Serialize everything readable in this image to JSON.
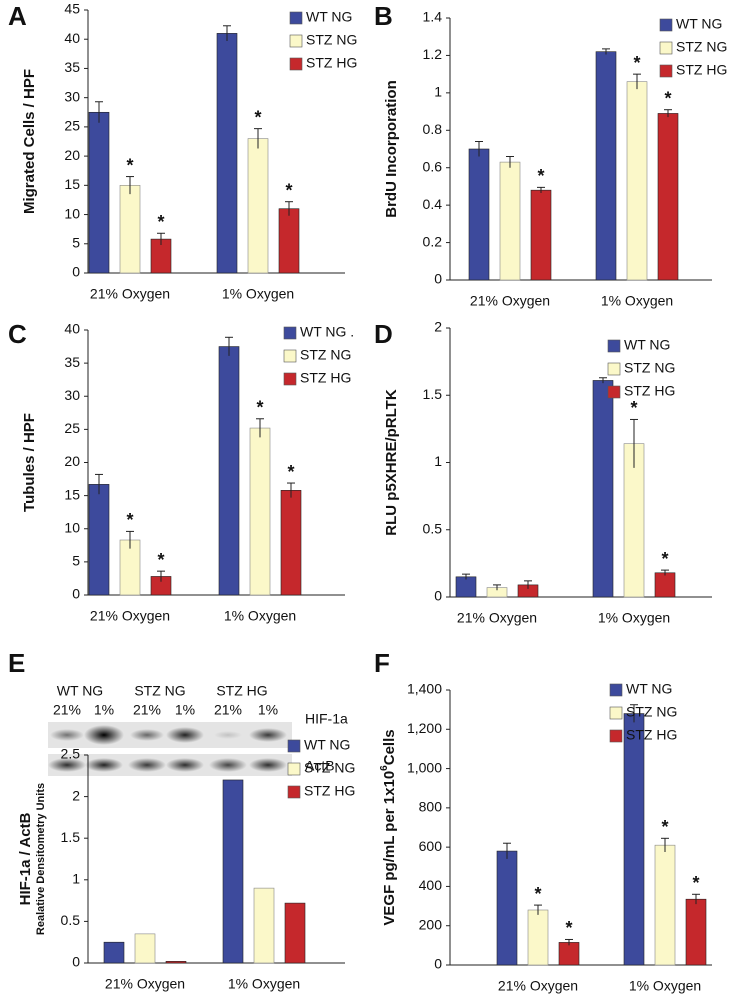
{
  "blot": {
    "groups": [
      "WT NG",
      "STZ NG",
      "STZ HG"
    ],
    "lanes": [
      "21%",
      "1%",
      "21%",
      "1%",
      "21%",
      "1%"
    ],
    "bands": [
      "HIF-1a",
      "ActB"
    ]
  },
  "chart_data": [
    {
      "panel": "A",
      "type": "bar",
      "y_label": "Migrated Cells / HPF",
      "categories": [
        "21% Oxygen",
        "1% Oxygen"
      ],
      "ylim": [
        0,
        45
      ],
      "yticks": [
        0,
        5,
        10,
        15,
        20,
        25,
        30,
        35,
        40,
        45
      ],
      "grid": false,
      "series": [
        {
          "name": "WT NG",
          "color": "#3d4a9c",
          "values": [
            27.5,
            41
          ],
          "errors": [
            1.8,
            1.3
          ],
          "annotations": [
            null,
            null
          ]
        },
        {
          "name": "STZ NG",
          "color": "#fbf8c9",
          "values": [
            15,
            23
          ],
          "errors": [
            1.5,
            1.7
          ],
          "annotations": [
            "*",
            "*"
          ]
        },
        {
          "name": "STZ HG",
          "color": "#c5282c",
          "values": [
            5.8,
            11
          ],
          "errors": [
            1,
            1.2
          ],
          "annotations": [
            "*",
            "*"
          ]
        }
      ]
    },
    {
      "panel": "B",
      "type": "bar",
      "y_label": "BrdU Incorporation",
      "categories": [
        "21% Oxygen",
        "1% Oxygen"
      ],
      "ylim": [
        0,
        1.4
      ],
      "yticks": [
        0,
        0.2,
        0.4,
        0.6,
        0.8,
        1,
        1.2,
        1.4
      ],
      "grid": false,
      "series": [
        {
          "name": "WT NG",
          "color": "#3d4a9c",
          "values": [
            0.7,
            1.22
          ],
          "errors": [
            0.04,
            0.015
          ],
          "annotations": [
            null,
            null
          ]
        },
        {
          "name": "STZ NG",
          "color": "#fbf8c9",
          "values": [
            0.63,
            1.06
          ],
          "errors": [
            0.03,
            0.04
          ],
          "annotations": [
            null,
            "*"
          ]
        },
        {
          "name": "STZ HG",
          "color": "#c5282c",
          "values": [
            0.48,
            0.89
          ],
          "errors": [
            0.015,
            0.02
          ],
          "annotations": [
            "*",
            "*"
          ]
        }
      ]
    },
    {
      "panel": "C",
      "type": "bar",
      "y_label": "Tubules / HPF",
      "categories": [
        "21% Oxygen",
        "1% Oxygen"
      ],
      "ylim": [
        0,
        40
      ],
      "yticks": [
        0,
        5,
        10,
        15,
        20,
        25,
        30,
        35,
        40
      ],
      "grid": false,
      "series": [
        {
          "name": "WT NG .",
          "color": "#3d4a9c",
          "values": [
            16.7,
            37.5
          ],
          "errors": [
            1.5,
            1.4
          ],
          "annotations": [
            null,
            null
          ]
        },
        {
          "name": "STZ NG",
          "color": "#fbf8c9",
          "values": [
            8.3,
            25.2
          ],
          "errors": [
            1.3,
            1.4
          ],
          "annotations": [
            "*",
            "*"
          ]
        },
        {
          "name": "STZ HG",
          "color": "#c5282c",
          "values": [
            2.8,
            15.8
          ],
          "errors": [
            0.8,
            1.1
          ],
          "annotations": [
            "*",
            "*"
          ]
        }
      ]
    },
    {
      "panel": "D",
      "type": "bar",
      "y_label": "RLU p5XHRE/pRLTK",
      "categories": [
        "21% Oxygen",
        "1% Oxygen"
      ],
      "ylim": [
        0,
        2
      ],
      "yticks": [
        0,
        0.5,
        1,
        1.5,
        2
      ],
      "grid": false,
      "series": [
        {
          "name": "WT NG",
          "color": "#3d4a9c",
          "values": [
            0.15,
            1.61
          ],
          "errors": [
            0.02,
            0.02
          ],
          "annotations": [
            null,
            null
          ]
        },
        {
          "name": "STZ NG",
          "color": "#fbf8c9",
          "values": [
            0.07,
            1.14
          ],
          "errors": [
            0.02,
            0.18
          ],
          "annotations": [
            null,
            "*"
          ]
        },
        {
          "name": "STZ HG",
          "color": "#c5282c",
          "values": [
            0.09,
            0.18
          ],
          "errors": [
            0.03,
            0.02
          ],
          "annotations": [
            null,
            "*"
          ]
        }
      ]
    },
    {
      "panel": "E",
      "type": "bar",
      "y_label": "HIF-1a / ActB",
      "y_sublabel": "Realative Densitometry Units",
      "categories": [
        "21% Oxygen",
        "1% Oxygen"
      ],
      "ylim": [
        0,
        2.5
      ],
      "yticks": [
        0,
        0.5,
        1,
        1.5,
        2,
        2.5
      ],
      "grid": false,
      "series": [
        {
          "name": "WT NG",
          "color": "#3d4a9c",
          "values": [
            0.25,
            2.2
          ]
        },
        {
          "name": "STZ NG",
          "color": "#fbf8c9",
          "values": [
            0.35,
            0.9
          ]
        },
        {
          "name": "STZ HG",
          "color": "#c5282c",
          "values": [
            0.02,
            0.72
          ]
        }
      ]
    },
    {
      "panel": "F",
      "type": "bar",
      "y_label_parts": [
        "VEGF pg/mL per 1x10",
        "6",
        "Cells"
      ],
      "categories": [
        "21% Oxygen",
        "1% Oxygen"
      ],
      "ylim": [
        0,
        1400
      ],
      "yticks": [
        0,
        200,
        400,
        600,
        800,
        {
          "value": 1000,
          "label": "1,000"
        },
        {
          "value": 1200,
          "label": "1,200"
        },
        {
          "value": 1400,
          "label": "1,400"
        }
      ],
      "grid": false,
      "series": [
        {
          "name": "WT NG",
          "color": "#3d4a9c",
          "values": [
            580,
            1280
          ],
          "errors": [
            40,
            45
          ],
          "annotations": [
            null,
            null
          ]
        },
        {
          "name": "STZ NG",
          "color": "#fbf8c9",
          "values": [
            280,
            610
          ],
          "errors": [
            25,
            35
          ],
          "annotations": [
            "*",
            "*"
          ]
        },
        {
          "name": "STZ HG",
          "color": "#c5282c",
          "values": [
            115,
            335
          ],
          "errors": [
            15,
            25
          ],
          "annotations": [
            "*",
            "*"
          ]
        }
      ]
    }
  ]
}
